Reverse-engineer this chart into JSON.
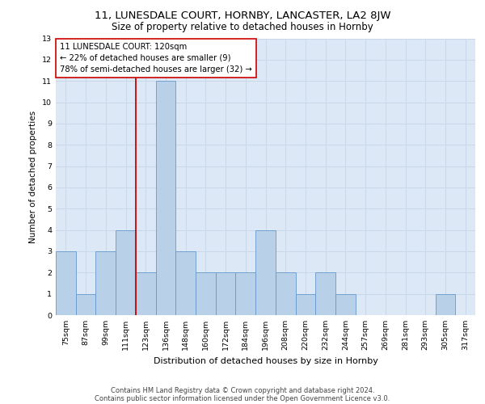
{
  "title": "11, LUNESDALE COURT, HORNBY, LANCASTER, LA2 8JW",
  "subtitle": "Size of property relative to detached houses in Hornby",
  "xlabel": "Distribution of detached houses by size in Hornby",
  "ylabel": "Number of detached properties",
  "bin_labels": [
    "75sqm",
    "87sqm",
    "99sqm",
    "111sqm",
    "123sqm",
    "136sqm",
    "148sqm",
    "160sqm",
    "172sqm",
    "184sqm",
    "196sqm",
    "208sqm",
    "220sqm",
    "232sqm",
    "244sqm",
    "257sqm",
    "269sqm",
    "281sqm",
    "293sqm",
    "305sqm",
    "317sqm"
  ],
  "bar_heights": [
    3,
    1,
    3,
    4,
    2,
    11,
    3,
    2,
    2,
    2,
    4,
    2,
    1,
    2,
    1,
    0,
    0,
    0,
    0,
    1,
    0
  ],
  "bar_color": "#b8d0e8",
  "bar_edge_color": "#6699cc",
  "property_label": "11 LUNESDALE COURT: 120sqm",
  "pct_smaller": 22,
  "n_smaller": 9,
  "pct_larger": 78,
  "n_larger": 32,
  "vline_color": "#cc0000",
  "annotation_box_edge": "#cc0000",
  "ylim": [
    0,
    13
  ],
  "yticks": [
    0,
    1,
    2,
    3,
    4,
    5,
    6,
    7,
    8,
    9,
    10,
    11,
    12,
    13
  ],
  "footer1": "Contains HM Land Registry data © Crown copyright and database right 2024.",
  "footer2": "Contains public sector information licensed under the Open Government Licence v3.0.",
  "bg_color": "#dce8f5",
  "fig_bg_color": "#ffffff"
}
